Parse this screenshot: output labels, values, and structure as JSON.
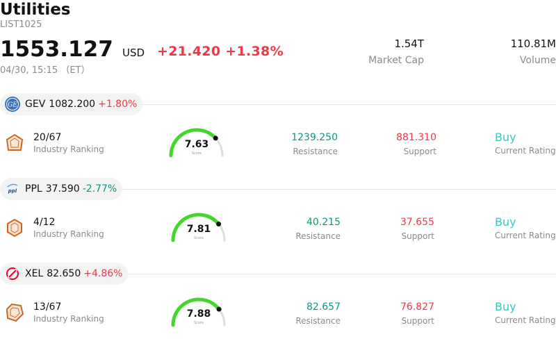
{
  "header": {
    "title": "Utilities",
    "code": "LIST1025",
    "price": "1553.127",
    "currency": "USD",
    "change": "+21.420",
    "change_pct": "+1.38%",
    "datetime": "04/30, 15:15 （ET）",
    "market_cap_value": "1.54T",
    "market_cap_label": "Market Cap",
    "volume_value": "110.81M",
    "volume_label": "Volume"
  },
  "stocks": [
    {
      "ticker": "GEV",
      "price": "1082.200",
      "change_pct": "+1.80%",
      "direction": "up",
      "logo": "ge-logo-icon",
      "rank": "20/67",
      "rank_label": "Industry Ranking",
      "score": "7.63",
      "score_fraction": 0.763,
      "score_label": "Score",
      "resistance": "1239.250",
      "resistance_label": "Resistance",
      "support": "881.310",
      "support_label": "Support",
      "rating": "Buy",
      "rating_label": "Current Rating"
    },
    {
      "ticker": "PPL",
      "price": "37.590",
      "change_pct": "-2.77%",
      "direction": "down",
      "logo": "ppl-logo-icon",
      "rank": "4/12",
      "rank_label": "Industry Ranking",
      "score": "7.81",
      "score_fraction": 0.781,
      "score_label": "Score",
      "resistance": "40.215",
      "resistance_label": "Resistance",
      "support": "37.655",
      "support_label": "Support",
      "rating": "Buy",
      "rating_label": "Current Rating"
    },
    {
      "ticker": "XEL",
      "price": "82.650",
      "change_pct": "+4.86%",
      "direction": "up",
      "logo": "xel-logo-icon",
      "rank": "13/67",
      "rank_label": "Industry Ranking",
      "score": "7.88",
      "score_fraction": 0.788,
      "score_label": "Score",
      "resistance": "82.657",
      "resistance_label": "Resistance",
      "support": "76.827",
      "support_label": "Support",
      "rating": "Buy",
      "rating_label": "Current Rating"
    }
  ],
  "colors": {
    "up": "#f23645",
    "down": "#089981",
    "rating": "#38c8c0",
    "gauge": "#44d62c",
    "gauge_track": "#dcdce4"
  }
}
